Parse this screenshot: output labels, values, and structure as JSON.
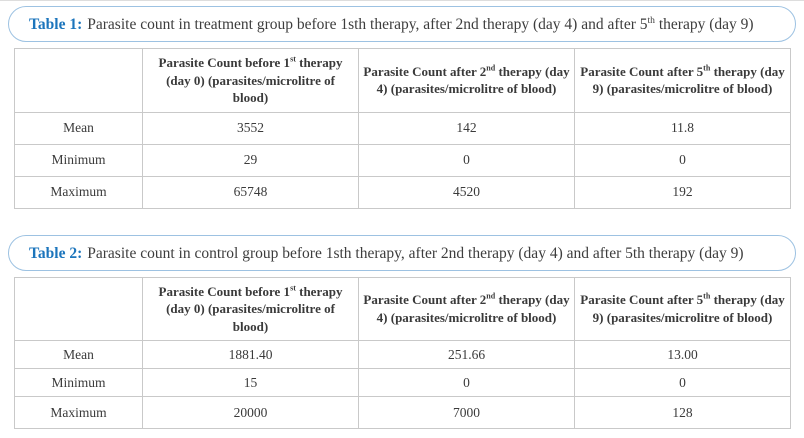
{
  "page": {
    "background": "#ffffff",
    "accent_blue": "#1c75bc",
    "pill_border_color": "#9dc2e2",
    "table_border_color": "#c9c9c9",
    "text_color": "#3a3a3a"
  },
  "tables": [
    {
      "caption_label": "Table 1:",
      "caption_text": "Parasite count in treatment group before 1sth therapy, after 2nd therapy (day 4) and after 5^th^ therapy (day 9)",
      "headers": [
        "",
        "Parasite Count before 1^st^ therapy (day 0) (parasites/microlitre of blood)",
        "Parasite Count after 2^nd^ therapy (day 4) (parasites/microlitre of blood)",
        "Parasite Count after 5^th^ therapy (day 9) (parasites/microlitre of blood)"
      ],
      "rows": [
        {
          "label": "Mean",
          "values": [
            "3552",
            "142",
            "11.8"
          ]
        },
        {
          "label": "Minimum",
          "values": [
            "29",
            "0",
            "0"
          ]
        },
        {
          "label": "Maximum",
          "values": [
            "65748",
            "4520",
            "192"
          ]
        }
      ]
    },
    {
      "caption_label": "Table 2:",
      "caption_text": "Parasite count in control group before 1sth therapy, after 2nd therapy (day 4) and after 5th therapy (day 9)",
      "headers": [
        "",
        "Parasite Count before 1^st^ therapy (day 0) (parasites/microlitre of blood)",
        "Parasite Count after 2^nd^ therapy (day 4) (parasites/microlitre of blood)",
        "Parasite Count after 5^th^ therapy (day 9) (parasites/microlitre of blood)"
      ],
      "rows": [
        {
          "label": "Mean",
          "values": [
            "1881.40",
            "251.66",
            "13.00"
          ]
        },
        {
          "label": "Minimum",
          "values": [
            "15",
            "0",
            "0"
          ]
        },
        {
          "label": "Maximum",
          "values": [
            "20000",
            "7000",
            "128"
          ]
        }
      ]
    }
  ]
}
